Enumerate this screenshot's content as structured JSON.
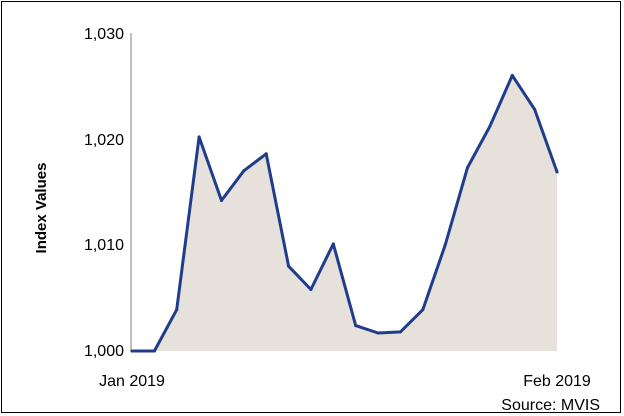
{
  "chart_data": {
    "type": "area",
    "title": "",
    "xlabel": "",
    "ylabel": "Index Values",
    "x_tick_labels": [
      "Jan 2019",
      "Feb 2019"
    ],
    "y_ticks": [
      "1,000",
      "1,010",
      "1,020",
      "1,030"
    ],
    "ylim": [
      1000,
      1030
    ],
    "grid": false,
    "legend": "none",
    "source": "Source: MVIS",
    "colors": {
      "line": "#1f3d8a",
      "fill": "#e6e1da"
    },
    "series": [
      {
        "values": [
          1000.0,
          1000.0,
          1003.9,
          1020.2,
          1014.2,
          1017.0,
          1018.6,
          1008.0,
          1005.8,
          1010.1,
          1002.4,
          1001.7,
          1001.8,
          1003.9,
          1010.0,
          1017.3,
          1021.2,
          1026.0,
          1022.8,
          1016.9
        ]
      }
    ]
  }
}
